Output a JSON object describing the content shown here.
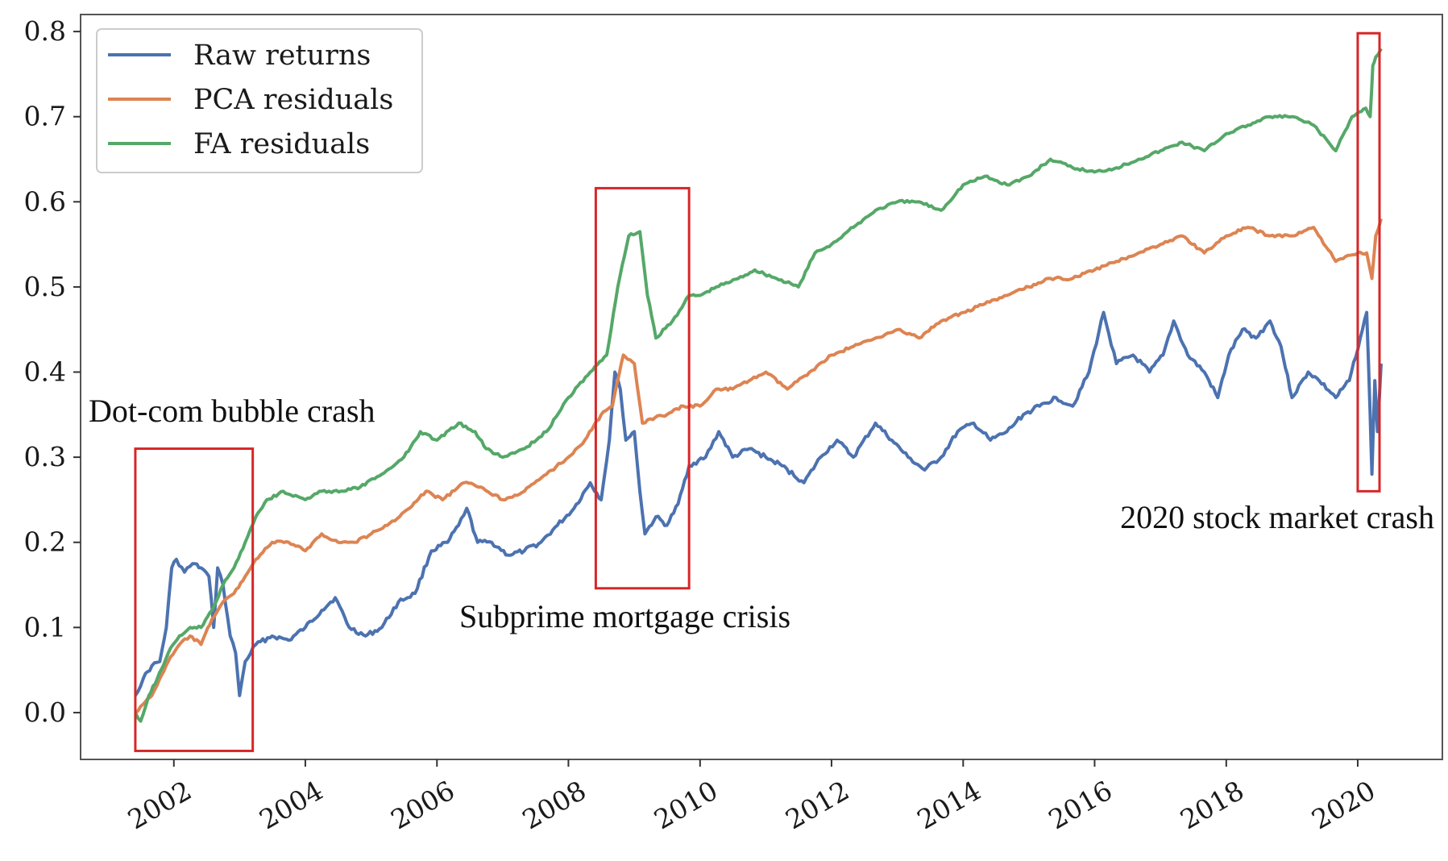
{
  "chart_data": {
    "type": "line",
    "title": "",
    "xlabel": "",
    "ylabel": "",
    "xlim": [
      "2000-08-01",
      "2021-04-15"
    ],
    "ylim": [
      -0.055,
      0.82
    ],
    "grid": false,
    "legend_placement": "top-left",
    "x_ticks": [
      "2002",
      "2004",
      "2006",
      "2008",
      "2010",
      "2012",
      "2014",
      "2016",
      "2018",
      "2020"
    ],
    "y_ticks": [
      "0.0",
      "0.1",
      "0.2",
      "0.3",
      "0.4",
      "0.5",
      "0.6",
      "0.7",
      "0.8"
    ],
    "series": [
      {
        "name": "Raw returns",
        "color": "#4c72b0",
        "points": [
          [
            "2001-06-01",
            0.02
          ],
          [
            "2001-07-15",
            0.04
          ],
          [
            "2001-09-01",
            0.055
          ],
          [
            "2001-10-15",
            0.06
          ],
          [
            "2001-11-20",
            0.1
          ],
          [
            "2001-12-20",
            0.17
          ],
          [
            "2002-01-15",
            0.18
          ],
          [
            "2002-03-01",
            0.165
          ],
          [
            "2002-04-15",
            0.175
          ],
          [
            "2002-06-01",
            0.17
          ],
          [
            "2002-07-15",
            0.16
          ],
          [
            "2002-08-10",
            0.1
          ],
          [
            "2002-09-01",
            0.17
          ],
          [
            "2002-10-01",
            0.15
          ],
          [
            "2002-11-10",
            0.09
          ],
          [
            "2002-12-10",
            0.07
          ],
          [
            "2003-01-01",
            0.02
          ],
          [
            "2003-02-01",
            0.06
          ],
          [
            "2003-04-01",
            0.08
          ],
          [
            "2003-07-01",
            0.09
          ],
          [
            "2003-10-01",
            0.085
          ],
          [
            "2004-01-01",
            0.1
          ],
          [
            "2004-04-01",
            0.12
          ],
          [
            "2004-06-15",
            0.135
          ],
          [
            "2004-09-01",
            0.1
          ],
          [
            "2004-12-01",
            0.09
          ],
          [
            "2005-03-01",
            0.1
          ],
          [
            "2005-06-01",
            0.13
          ],
          [
            "2005-09-01",
            0.14
          ],
          [
            "2005-12-01",
            0.19
          ],
          [
            "2006-03-01",
            0.2
          ],
          [
            "2006-05-01",
            0.22
          ],
          [
            "2006-06-15",
            0.24
          ],
          [
            "2006-08-15",
            0.2
          ],
          [
            "2006-11-01",
            0.2
          ],
          [
            "2007-02-01",
            0.185
          ],
          [
            "2007-05-01",
            0.19
          ],
          [
            "2007-08-01",
            0.2
          ],
          [
            "2007-11-01",
            0.22
          ],
          [
            "2008-02-01",
            0.24
          ],
          [
            "2008-05-01",
            0.27
          ],
          [
            "2008-07-01",
            0.25
          ],
          [
            "2008-08-15",
            0.32
          ],
          [
            "2008-09-15",
            0.4
          ],
          [
            "2008-10-15",
            0.38
          ],
          [
            "2008-11-15",
            0.32
          ],
          [
            "2009-01-01",
            0.33
          ],
          [
            "2009-02-01",
            0.26
          ],
          [
            "2009-03-01",
            0.21
          ],
          [
            "2009-05-01",
            0.23
          ],
          [
            "2009-07-01",
            0.22
          ],
          [
            "2009-09-01",
            0.245
          ],
          [
            "2009-11-01",
            0.29
          ],
          [
            "2010-02-01",
            0.3
          ],
          [
            "2010-04-15",
            0.33
          ],
          [
            "2010-07-01",
            0.3
          ],
          [
            "2010-10-01",
            0.31
          ],
          [
            "2011-01-01",
            0.3
          ],
          [
            "2011-04-01",
            0.29
          ],
          [
            "2011-08-01",
            0.27
          ],
          [
            "2011-11-01",
            0.3
          ],
          [
            "2012-02-01",
            0.32
          ],
          [
            "2012-05-01",
            0.3
          ],
          [
            "2012-09-01",
            0.34
          ],
          [
            "2012-12-01",
            0.32
          ],
          [
            "2013-03-01",
            0.3
          ],
          [
            "2013-06-01",
            0.285
          ],
          [
            "2013-09-01",
            0.3
          ],
          [
            "2013-12-01",
            0.33
          ],
          [
            "2014-03-01",
            0.34
          ],
          [
            "2014-06-01",
            0.32
          ],
          [
            "2014-09-01",
            0.33
          ],
          [
            "2014-12-01",
            0.35
          ],
          [
            "2015-03-01",
            0.36
          ],
          [
            "2015-06-01",
            0.37
          ],
          [
            "2015-09-01",
            0.36
          ],
          [
            "2015-12-01",
            0.4
          ],
          [
            "2016-02-20",
            0.47
          ],
          [
            "2016-05-01",
            0.41
          ],
          [
            "2016-08-01",
            0.42
          ],
          [
            "2016-11-01",
            0.4
          ],
          [
            "2017-01-15",
            0.42
          ],
          [
            "2017-03-15",
            0.46
          ],
          [
            "2017-06-01",
            0.42
          ],
          [
            "2017-09-01",
            0.4
          ],
          [
            "2017-11-15",
            0.37
          ],
          [
            "2018-01-15",
            0.42
          ],
          [
            "2018-04-01",
            0.45
          ],
          [
            "2018-06-15",
            0.44
          ],
          [
            "2018-09-01",
            0.46
          ],
          [
            "2018-11-01",
            0.43
          ],
          [
            "2019-01-01",
            0.37
          ],
          [
            "2019-04-01",
            0.4
          ],
          [
            "2019-06-01",
            0.39
          ],
          [
            "2019-09-01",
            0.37
          ],
          [
            "2019-11-15",
            0.39
          ],
          [
            "2020-01-15",
            0.44
          ],
          [
            "2020-02-20",
            0.47
          ],
          [
            "2020-03-10",
            0.35
          ],
          [
            "2020-03-20",
            0.28
          ],
          [
            "2020-04-05",
            0.39
          ],
          [
            "2020-04-20",
            0.33
          ],
          [
            "2020-05-10",
            0.41
          ]
        ]
      },
      {
        "name": "PCA residuals",
        "color": "#dd8452",
        "points": [
          [
            "2001-06-01",
            0.0
          ],
          [
            "2001-07-15",
            0.01
          ],
          [
            "2001-09-01",
            0.02
          ],
          [
            "2001-10-15",
            0.04
          ],
          [
            "2001-12-01",
            0.06
          ],
          [
            "2002-02-01",
            0.08
          ],
          [
            "2002-04-01",
            0.09
          ],
          [
            "2002-06-01",
            0.08
          ],
          [
            "2002-08-01",
            0.11
          ],
          [
            "2002-10-01",
            0.13
          ],
          [
            "2002-12-01",
            0.14
          ],
          [
            "2003-02-01",
            0.16
          ],
          [
            "2003-04-01",
            0.18
          ],
          [
            "2003-07-01",
            0.2
          ],
          [
            "2003-10-01",
            0.2
          ],
          [
            "2004-01-01",
            0.19
          ],
          [
            "2004-04-01",
            0.21
          ],
          [
            "2004-07-01",
            0.2
          ],
          [
            "2004-10-01",
            0.2
          ],
          [
            "2005-01-01",
            0.21
          ],
          [
            "2005-04-01",
            0.22
          ],
          [
            "2005-08-01",
            0.24
          ],
          [
            "2005-11-01",
            0.26
          ],
          [
            "2006-02-01",
            0.25
          ],
          [
            "2006-06-01",
            0.27
          ],
          [
            "2006-09-01",
            0.265
          ],
          [
            "2007-01-01",
            0.25
          ],
          [
            "2007-05-01",
            0.26
          ],
          [
            "2007-09-01",
            0.28
          ],
          [
            "2008-01-01",
            0.3
          ],
          [
            "2008-04-01",
            0.32
          ],
          [
            "2008-07-01",
            0.35
          ],
          [
            "2008-09-01",
            0.36
          ],
          [
            "2008-11-01",
            0.42
          ],
          [
            "2009-01-01",
            0.41
          ],
          [
            "2009-02-15",
            0.34
          ],
          [
            "2009-04-01",
            0.345
          ],
          [
            "2009-07-01",
            0.35
          ],
          [
            "2009-10-01",
            0.36
          ],
          [
            "2010-01-01",
            0.36
          ],
          [
            "2010-04-01",
            0.38
          ],
          [
            "2010-07-01",
            0.38
          ],
          [
            "2010-10-01",
            0.39
          ],
          [
            "2011-01-01",
            0.4
          ],
          [
            "2011-05-01",
            0.38
          ],
          [
            "2011-09-01",
            0.4
          ],
          [
            "2012-01-01",
            0.42
          ],
          [
            "2012-05-01",
            0.43
          ],
          [
            "2012-09-01",
            0.44
          ],
          [
            "2013-01-01",
            0.45
          ],
          [
            "2013-05-01",
            0.44
          ],
          [
            "2013-09-01",
            0.46
          ],
          [
            "2014-01-01",
            0.47
          ],
          [
            "2014-05-01",
            0.48
          ],
          [
            "2014-09-01",
            0.49
          ],
          [
            "2015-01-01",
            0.5
          ],
          [
            "2015-05-01",
            0.51
          ],
          [
            "2015-09-01",
            0.51
          ],
          [
            "2016-01-01",
            0.52
          ],
          [
            "2016-05-01",
            0.53
          ],
          [
            "2016-09-01",
            0.54
          ],
          [
            "2017-01-01",
            0.55
          ],
          [
            "2017-05-01",
            0.56
          ],
          [
            "2017-09-01",
            0.54
          ],
          [
            "2018-01-01",
            0.56
          ],
          [
            "2018-05-01",
            0.57
          ],
          [
            "2018-09-01",
            0.56
          ],
          [
            "2019-01-01",
            0.56
          ],
          [
            "2019-05-01",
            0.57
          ],
          [
            "2019-09-01",
            0.53
          ],
          [
            "2020-01-01",
            0.54
          ],
          [
            "2020-02-20",
            0.54
          ],
          [
            "2020-03-20",
            0.51
          ],
          [
            "2020-04-10",
            0.56
          ],
          [
            "2020-05-10",
            0.58
          ]
        ]
      },
      {
        "name": "FA residuals",
        "color": "#55a868",
        "points": [
          [
            "2001-06-01",
            0.0
          ],
          [
            "2001-07-01",
            -0.01
          ],
          [
            "2001-08-15",
            0.02
          ],
          [
            "2001-10-01",
            0.04
          ],
          [
            "2001-12-01",
            0.07
          ],
          [
            "2002-02-01",
            0.09
          ],
          [
            "2002-04-01",
            0.1
          ],
          [
            "2002-06-01",
            0.1
          ],
          [
            "2002-08-01",
            0.12
          ],
          [
            "2002-10-01",
            0.15
          ],
          [
            "2002-12-01",
            0.17
          ],
          [
            "2003-02-01",
            0.2
          ],
          [
            "2003-04-01",
            0.23
          ],
          [
            "2003-06-01",
            0.25
          ],
          [
            "2003-09-01",
            0.26
          ],
          [
            "2004-01-01",
            0.25
          ],
          [
            "2004-04-01",
            0.26
          ],
          [
            "2004-08-01",
            0.26
          ],
          [
            "2004-11-01",
            0.265
          ],
          [
            "2005-03-01",
            0.28
          ],
          [
            "2005-07-01",
            0.3
          ],
          [
            "2005-10-01",
            0.33
          ],
          [
            "2006-01-01",
            0.32
          ],
          [
            "2006-05-01",
            0.34
          ],
          [
            "2006-08-01",
            0.33
          ],
          [
            "2006-10-01",
            0.31
          ],
          [
            "2007-01-01",
            0.3
          ],
          [
            "2007-05-01",
            0.31
          ],
          [
            "2007-09-01",
            0.33
          ],
          [
            "2008-01-01",
            0.37
          ],
          [
            "2008-05-01",
            0.4
          ],
          [
            "2008-08-01",
            0.42
          ],
          [
            "2008-10-01",
            0.5
          ],
          [
            "2008-12-01",
            0.56
          ],
          [
            "2009-02-01",
            0.565
          ],
          [
            "2009-03-15",
            0.49
          ],
          [
            "2009-05-01",
            0.44
          ],
          [
            "2009-08-01",
            0.46
          ],
          [
            "2009-11-01",
            0.49
          ],
          [
            "2010-01-01",
            0.49
          ],
          [
            "2010-04-01",
            0.5
          ],
          [
            "2010-08-01",
            0.51
          ],
          [
            "2010-11-01",
            0.52
          ],
          [
            "2011-03-01",
            0.51
          ],
          [
            "2011-07-01",
            0.5
          ],
          [
            "2011-10-01",
            0.54
          ],
          [
            "2012-01-01",
            0.55
          ],
          [
            "2012-05-01",
            0.57
          ],
          [
            "2012-09-01",
            0.59
          ],
          [
            "2013-01-01",
            0.6
          ],
          [
            "2013-05-01",
            0.6
          ],
          [
            "2013-09-01",
            0.59
          ],
          [
            "2014-01-01",
            0.62
          ],
          [
            "2014-05-01",
            0.63
          ],
          [
            "2014-09-01",
            0.62
          ],
          [
            "2015-01-01",
            0.63
          ],
          [
            "2015-05-01",
            0.65
          ],
          [
            "2015-09-01",
            0.64
          ],
          [
            "2016-01-01",
            0.635
          ],
          [
            "2016-05-01",
            0.64
          ],
          [
            "2016-09-01",
            0.65
          ],
          [
            "2017-01-01",
            0.66
          ],
          [
            "2017-05-01",
            0.67
          ],
          [
            "2017-09-01",
            0.66
          ],
          [
            "2018-01-01",
            0.68
          ],
          [
            "2018-05-01",
            0.69
          ],
          [
            "2018-09-01",
            0.7
          ],
          [
            "2019-01-01",
            0.7
          ],
          [
            "2019-05-01",
            0.69
          ],
          [
            "2019-09-01",
            0.66
          ],
          [
            "2019-12-01",
            0.7
          ],
          [
            "2020-02-15",
            0.71
          ],
          [
            "2020-03-10",
            0.7
          ],
          [
            "2020-03-25",
            0.76
          ],
          [
            "2020-04-10",
            0.77
          ],
          [
            "2020-05-10",
            0.78
          ]
        ]
      }
    ],
    "annotations": [
      {
        "label": "Dot-com bubble crash",
        "box_x": [
          "2001-06-01",
          "2003-03-15"
        ],
        "box_y": [
          -0.045,
          0.31
        ]
      },
      {
        "label": "Subprime mortgage crisis",
        "box_x": [
          "2008-06-01",
          "2009-11-01"
        ],
        "box_y": [
          0.146,
          0.616
        ]
      },
      {
        "label": "2020 stock market crash",
        "box_x": [
          "2020-01-01",
          "2020-05-01"
        ],
        "box_y": [
          0.26,
          0.798
        ]
      }
    ]
  }
}
